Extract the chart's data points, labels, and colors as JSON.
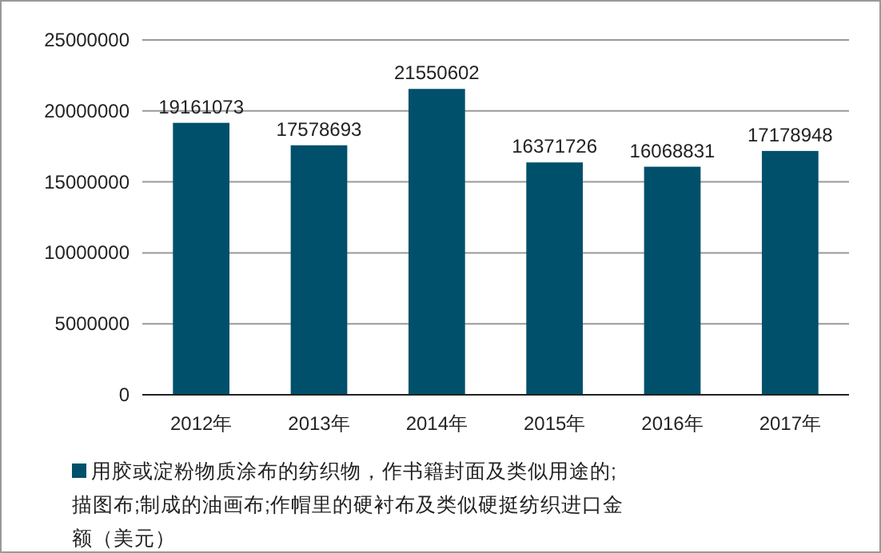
{
  "chart_data": {
    "type": "bar",
    "categories": [
      "2012年",
      "2013年",
      "2014年",
      "2015年",
      "2016年",
      "2017年"
    ],
    "series": [
      {
        "name": "用胶或淀粉物质涂布的纺织物，作书籍封面及类似用途的;描图布;制成的油画布;作帽里的硬衬布及类似硬挺纺织进口金额（美元）",
        "color": "#00506b",
        "values": [
          19161073,
          17578693,
          21550602,
          16371726,
          16068831,
          17178948
        ]
      }
    ],
    "ylim": [
      0,
      25000000
    ],
    "yticks": [
      0,
      5000000,
      10000000,
      15000000,
      20000000,
      25000000
    ],
    "grid": "y",
    "legend": "bottom",
    "data_labels": true
  }
}
